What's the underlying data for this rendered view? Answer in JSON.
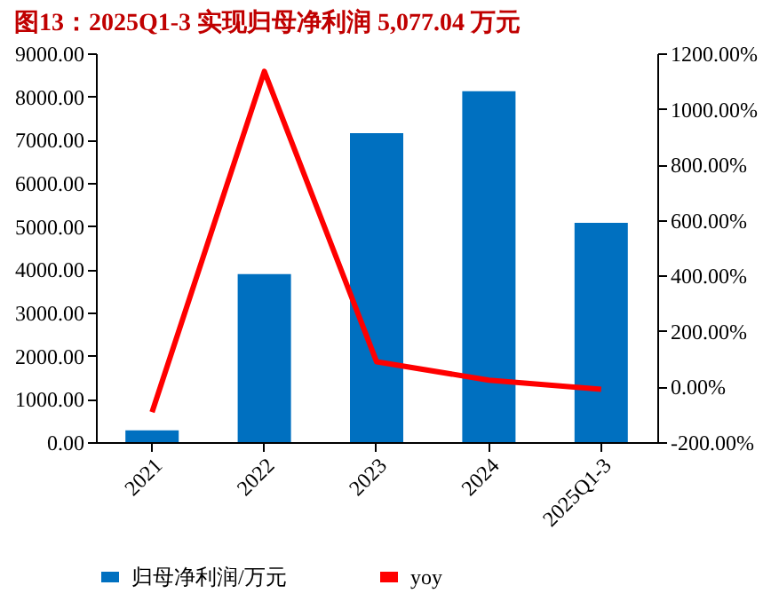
{
  "chart_data": {
    "type": "bar",
    "title": "图13：2025Q1-3 实现归母净利润 5,077.04 万元",
    "categories": [
      "2021",
      "2022",
      "2023",
      "2024",
      "2025Q1-3"
    ],
    "series": [
      {
        "name": "归母净利润/万元",
        "color": "#0070c0",
        "values": [
          270,
          3890,
          7150,
          8120,
          5077.04
        ]
      },
      {
        "name": "yoy",
        "type": "line",
        "axis": "y2",
        "color": "#ff0000",
        "values": [
          -92,
          1135,
          89,
          23,
          -10
        ]
      }
    ],
    "ylim": [
      0,
      9000
    ],
    "yticks": [
      {
        "value": 0,
        "label": "0.00"
      },
      {
        "value": 1000,
        "label": "1000.00"
      },
      {
        "value": 2000,
        "label": "2000.00"
      },
      {
        "value": 3000,
        "label": "3000.00"
      },
      {
        "value": 4000,
        "label": "4000.00"
      },
      {
        "value": 5000,
        "label": "5000.00"
      },
      {
        "value": 6000,
        "label": "6000.00"
      },
      {
        "value": 7000,
        "label": "7000.00"
      },
      {
        "value": 8000,
        "label": "8000.00"
      },
      {
        "value": 9000,
        "label": "9000.00"
      }
    ],
    "y2lim": [
      -200,
      1200
    ],
    "y2ticks": [
      {
        "value": -200,
        "label": "-200.00%"
      },
      {
        "value": 0,
        "label": "0.00%"
      },
      {
        "value": 200,
        "label": "200.00%"
      },
      {
        "value": 400,
        "label": "400.00%"
      },
      {
        "value": 600,
        "label": "600.00%"
      },
      {
        "value": 800,
        "label": "800.00%"
      },
      {
        "value": 1000,
        "label": "1000.00%"
      },
      {
        "value": 1200,
        "label": "1200.00%"
      }
    ],
    "grid": false,
    "legend": "bottom"
  }
}
